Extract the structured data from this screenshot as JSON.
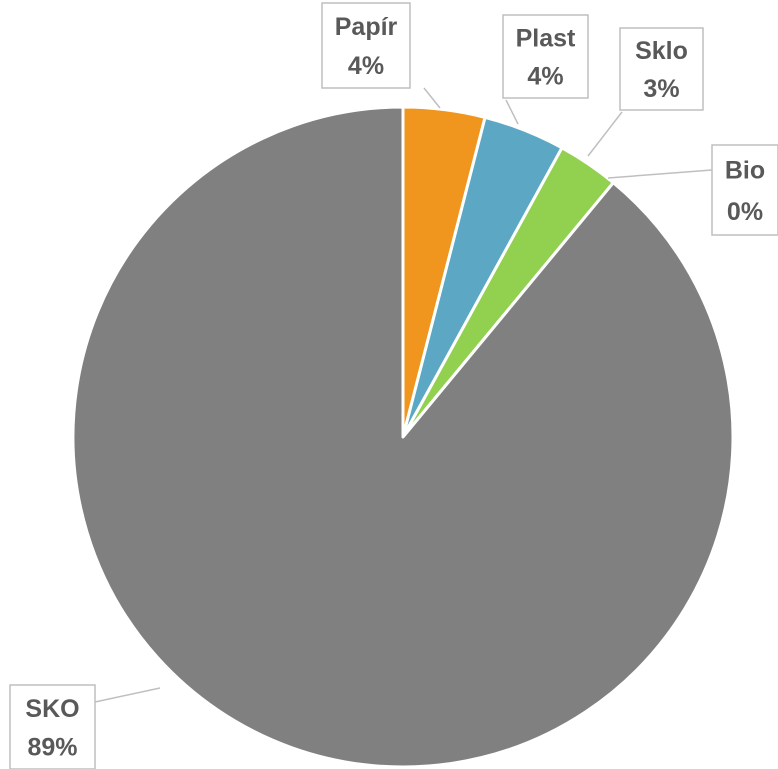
{
  "chart_data": {
    "type": "pie",
    "categories": [
      "Papír",
      "Plast",
      "Sklo",
      "Bio",
      "SKO"
    ],
    "values": [
      4,
      4,
      3,
      0,
      89
    ],
    "value_labels": [
      "4%",
      "4%",
      "3%",
      "0%",
      "89%"
    ],
    "colors": [
      "#f0961e",
      "#5ba7c4",
      "#92d050",
      "#7f6000",
      "#808080"
    ]
  }
}
